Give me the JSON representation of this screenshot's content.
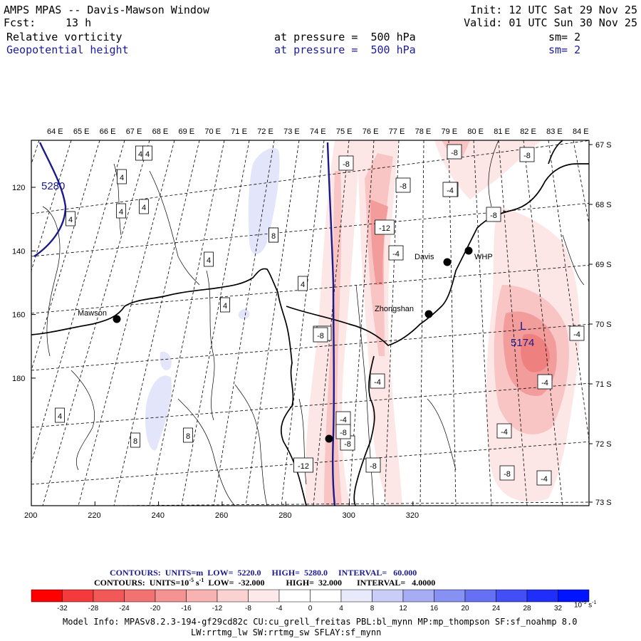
{
  "header": {
    "title": "AMPS MPAS -- Davis-Mawson Window",
    "init": "Init: 12 UTC Sat 29 Nov 25",
    "fcst_label": "Fcst:",
    "fcst_value": "13 h",
    "valid": "Valid: 01 UTC Sun 30 Nov 25",
    "field1": {
      "name": "Relative vorticity",
      "level": "at pressure =  500 hPa",
      "sm": "sm= 2"
    },
    "field2": {
      "name": "Geopotential height",
      "level": "at pressure =  500 hPa",
      "sm": "sm= 2"
    }
  },
  "map": {
    "lon_labels": [
      "64 E",
      "65 E",
      "66 E",
      "67 E",
      "68 E",
      "69 E",
      "70 E",
      "71 E",
      "72 E",
      "73 E",
      "74 E",
      "75 E",
      "76 E",
      "77 E",
      "78 E",
      "79 E",
      "80 E",
      "81 E",
      "82 E",
      "83 E",
      "84 E"
    ],
    "lat_labels": [
      "67 S",
      "68 S",
      "69 S",
      "70 S",
      "71 S",
      "72 S",
      "73 S"
    ],
    "x_ticks": [
      "200",
      "220",
      "240",
      "260",
      "280",
      "300",
      "320"
    ],
    "y_ticks": [
      "120",
      "140",
      "160",
      "180"
    ],
    "stations": [
      {
        "name": "Mawson"
      },
      {
        "name": "Davis"
      },
      {
        "name": "WHP"
      },
      {
        "name": "Zhongshan"
      }
    ],
    "height_label": "5280",
    "low_marker": "L",
    "low_value": "5174",
    "vort_labels": [
      "4",
      "4",
      "4",
      "4",
      "4",
      "4",
      "4",
      "4",
      "4",
      "4",
      "8",
      "8",
      "-8",
      "-8",
      "-8",
      "-12",
      "-4",
      "-4",
      "-8",
      "-8",
      "-4",
      "-4",
      "-4",
      "-8",
      "-12",
      "-8",
      "-4",
      "-4",
      "-4",
      "-8",
      "-4",
      "-8",
      "-8",
      "-4",
      "4",
      "8",
      "-8"
    ],
    "colors": {
      "height": "#1a1a8c",
      "pink_light": "#fde6e6",
      "pink_mid": "#f9c4c4",
      "pink_dark": "#f39c9c",
      "blue_light": "#e3e6fa"
    }
  },
  "legend": {
    "contours1": "CONTOURS:  UNITS=m  LOW=  5220.0     HIGH=  5280.0     INTERVAL=   60.000",
    "contours2": "CONTOURS:  UNITS=10",
    "contours2_sup": "-5",
    "contours2_rest": " s",
    "contours2_sup2": "-1",
    "contours2_tail": "  LOW=  -32.000          HIGH=  32.000       INTERVAL=   4.0000",
    "colorbar_colors": [
      "#ff0000",
      "#f43a3a",
      "#f25858",
      "#f27272",
      "#f59393",
      "#f8b2b2",
      "#fbd2d2",
      "#fde9e9",
      "#ffffff",
      "#ffffff",
      "#e8eafb",
      "#c9cdf7",
      "#a7adf4",
      "#8790f3",
      "#6670f4",
      "#424ff6",
      "#1f2ff9",
      "#0014ff"
    ],
    "colorbar_ticks": [
      "-32",
      "-28",
      "-24",
      "-20",
      "-16",
      "-12",
      "-8",
      "-4",
      "0",
      "4",
      "8",
      "12",
      "16",
      "20",
      "24",
      "28",
      "32"
    ],
    "colorbar_unit": "10",
    "colorbar_unit_sup": "-5",
    "colorbar_unit_rest": " s",
    "colorbar_unit_sup2": "-1",
    "model_info1": "Model Info: MPASv8.2.3-194-gf29cd82c CU:cu_grell_freitas PBL:bl_mynn MP:mp_thompson SF:sf_noahmp 8.0",
    "model_info2": "LW:rrtmg_lw SW:rrtmg_sw SFLAY:sf_mynn"
  }
}
